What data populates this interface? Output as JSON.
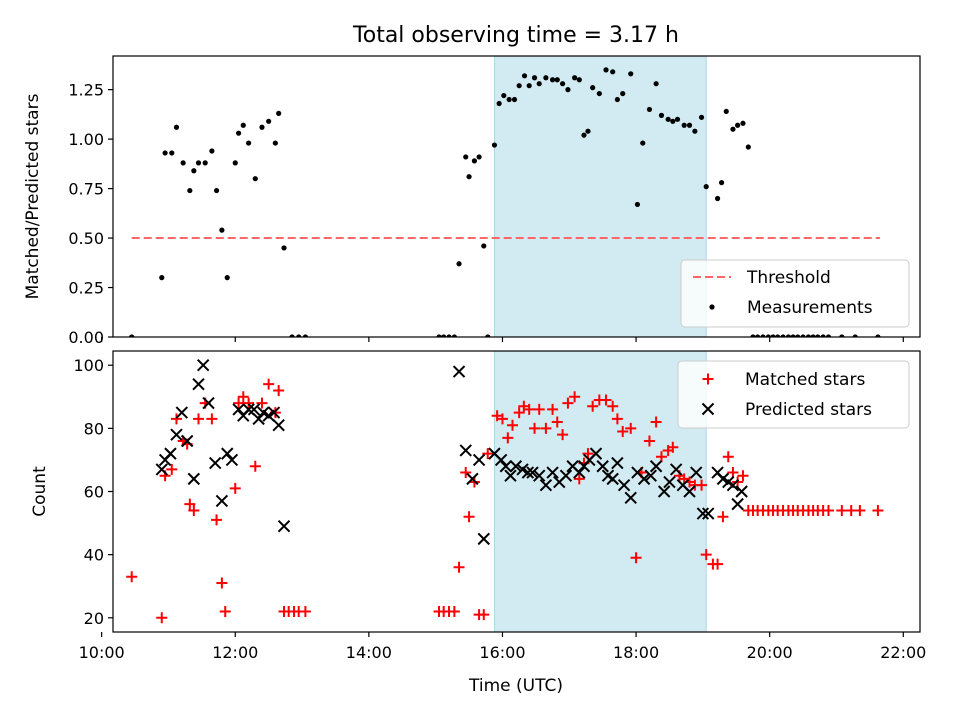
{
  "title": "Total observing time = 3.17 h",
  "xlabel": "Time (UTC)",
  "chart_data": [
    {
      "type": "scatter",
      "panel": "top",
      "title": "Total observing time = 3.17 h",
      "xlabel": "",
      "ylabel": "Matched/Predicted stars",
      "xlim": [
        10.17,
        22.25
      ],
      "ylim": [
        0,
        1.42
      ],
      "yticks": [
        0.0,
        0.25,
        0.5,
        0.75,
        1.0,
        1.25
      ],
      "ytick_labels": [
        "0.00",
        "0.25",
        "0.50",
        "0.75",
        "1.00",
        "1.25"
      ],
      "shaded_region": [
        15.88,
        19.05
      ],
      "shaded_color": "#add8e6",
      "threshold": {
        "name": "Threshold",
        "y": 0.5,
        "x_range": [
          10.45,
          21.65
        ],
        "color": "#ff6666",
        "style": "dashed"
      },
      "series": [
        {
          "name": "Measurements",
          "marker": "dot",
          "color": "#000000",
          "x": [
            10.45,
            10.9,
            10.95,
            11.05,
            11.12,
            11.22,
            11.32,
            11.38,
            11.45,
            11.55,
            11.65,
            11.72,
            11.8,
            11.88,
            12.0,
            12.05,
            12.12,
            12.2,
            12.3,
            12.4,
            12.5,
            12.6,
            12.65,
            12.73,
            12.85,
            12.95,
            13.05,
            15.05,
            15.12,
            15.2,
            15.28,
            15.35,
            15.45,
            15.5,
            15.58,
            15.65,
            15.72,
            15.78,
            15.88,
            15.95,
            16.02,
            16.1,
            16.18,
            16.25,
            16.33,
            16.4,
            16.48,
            16.55,
            16.65,
            16.75,
            16.82,
            16.9,
            16.98,
            17.08,
            17.15,
            17.22,
            17.28,
            17.35,
            17.45,
            17.55,
            17.65,
            17.72,
            17.8,
            17.92,
            18.02,
            18.1,
            18.2,
            18.3,
            18.38,
            18.48,
            18.55,
            18.62,
            18.72,
            18.8,
            18.88,
            18.98,
            19.05,
            19.22,
            19.28,
            19.35,
            19.45,
            19.52,
            19.6,
            19.68,
            19.75,
            19.82,
            19.9,
            19.98,
            20.05,
            20.12,
            20.2,
            20.28,
            20.35,
            20.42,
            20.5,
            20.58,
            20.65,
            20.72,
            20.8,
            20.88,
            21.08,
            21.28,
            21.62
          ],
          "values": [
            0.0,
            0.3,
            0.93,
            0.93,
            1.06,
            0.88,
            0.74,
            0.84,
            0.88,
            0.88,
            0.94,
            0.74,
            0.54,
            0.3,
            0.88,
            1.03,
            1.07,
            0.98,
            0.8,
            1.06,
            1.09,
            0.98,
            1.13,
            0.45,
            0.0,
            0.0,
            0.0,
            0.0,
            0.0,
            0.0,
            0.0,
            0.37,
            0.91,
            0.81,
            0.89,
            0.91,
            0.46,
            0.0,
            0.97,
            1.18,
            1.22,
            1.2,
            1.2,
            1.27,
            1.32,
            1.27,
            1.31,
            1.28,
            1.31,
            1.3,
            1.3,
            1.28,
            1.25,
            1.31,
            1.3,
            1.02,
            1.04,
            1.26,
            1.23,
            1.35,
            1.34,
            1.2,
            1.23,
            1.33,
            0.67,
            0.98,
            1.15,
            1.28,
            1.12,
            1.1,
            1.09,
            1.1,
            1.07,
            1.07,
            1.04,
            1.11,
            0.76,
            0.7,
            0.78,
            1.14,
            1.05,
            1.07,
            1.08,
            0.96,
            0.0,
            0.0,
            0.0,
            0.0,
            0.0,
            0.0,
            0.0,
            0.0,
            0.0,
            0.0,
            0.0,
            0.0,
            0.0,
            0.0,
            0.0,
            0.0,
            0.0,
            0.0,
            0.0
          ]
        }
      ],
      "legend": {
        "location": "lower-right",
        "entries": [
          "Threshold",
          "Measurements"
        ]
      }
    },
    {
      "type": "scatter",
      "panel": "bottom",
      "xlabel": "Time (UTC)",
      "ylabel": "Count",
      "xlim": [
        10.17,
        22.25
      ],
      "ylim": [
        15.5,
        104.5
      ],
      "yticks": [
        20,
        40,
        60,
        80,
        100
      ],
      "ytick_labels": [
        "20",
        "40",
        "60",
        "80",
        "100"
      ],
      "xticks": [
        10,
        12,
        14,
        16,
        18,
        20,
        22
      ],
      "xtick_labels": [
        "10:00",
        "12:00",
        "14:00",
        "16:00",
        "18:00",
        "20:00",
        "22:00"
      ],
      "shaded_region": [
        15.88,
        19.05
      ],
      "shaded_color": "#add8e6",
      "series": [
        {
          "name": "Matched stars",
          "marker": "plus",
          "color": "#ff0000",
          "x": [
            10.45,
            10.9,
            10.95,
            11.05,
            11.12,
            11.22,
            11.28,
            11.32,
            11.38,
            11.45,
            11.55,
            11.65,
            11.72,
            11.8,
            11.85,
            12.0,
            12.05,
            12.12,
            12.2,
            12.3,
            12.4,
            12.5,
            12.6,
            12.65,
            12.73,
            12.8,
            12.88,
            12.95,
            13.05,
            15.05,
            15.12,
            15.2,
            15.28,
            15.35,
            15.45,
            15.5,
            15.58,
            15.65,
            15.72,
            15.78,
            15.92,
            16.0,
            16.08,
            16.15,
            16.25,
            16.32,
            16.4,
            16.48,
            16.55,
            16.65,
            16.75,
            16.82,
            16.9,
            16.98,
            17.08,
            17.15,
            17.22,
            17.28,
            17.35,
            17.45,
            17.55,
            17.65,
            17.72,
            17.8,
            17.92,
            18.0,
            18.08,
            18.2,
            18.3,
            18.38,
            18.48,
            18.55,
            18.65,
            18.72,
            18.8,
            18.88,
            18.98,
            19.05,
            19.15,
            19.22,
            19.3,
            19.38,
            19.45,
            19.52,
            19.6,
            19.68,
            19.75,
            19.82,
            19.9,
            19.98,
            20.05,
            20.12,
            20.2,
            20.28,
            20.35,
            20.42,
            20.5,
            20.58,
            20.65,
            20.72,
            20.8,
            20.88,
            21.08,
            21.22,
            21.35,
            21.62
          ],
          "values": [
            33,
            20,
            65,
            67,
            83,
            76,
            75,
            56,
            54,
            83,
            88,
            83,
            51,
            31,
            22,
            61,
            88,
            90,
            88,
            68,
            88,
            94,
            85,
            92,
            22,
            22,
            22,
            22,
            22,
            22,
            22,
            22,
            22,
            36,
            66,
            52,
            63,
            21,
            21,
            72,
            84,
            83,
            77,
            81,
            85,
            87,
            86,
            80,
            86,
            80,
            86,
            82,
            78,
            88,
            90,
            64,
            69,
            72,
            87,
            89,
            89,
            87,
            83,
            79,
            80,
            39,
            66,
            76,
            82,
            71,
            73,
            74,
            65,
            64,
            63,
            62,
            62,
            40,
            37,
            37,
            52,
            71,
            66,
            63,
            65,
            54,
            54,
            54,
            54,
            54,
            54,
            54,
            54,
            54,
            54,
            54,
            54,
            54,
            54,
            54,
            54,
            54,
            54,
            54,
            54,
            54
          ]
        },
        {
          "name": "Predicted stars",
          "marker": "x",
          "color": "#000000",
          "x": [
            10.9,
            10.95,
            11.03,
            11.12,
            11.2,
            11.28,
            11.38,
            11.45,
            11.52,
            11.6,
            11.7,
            11.8,
            11.88,
            11.95,
            12.05,
            12.12,
            12.2,
            12.28,
            12.35,
            12.42,
            12.5,
            12.58,
            12.65,
            12.73,
            15.35,
            15.45,
            15.55,
            15.65,
            15.72,
            15.88,
            15.98,
            16.05,
            16.12,
            16.2,
            16.3,
            16.38,
            16.45,
            16.55,
            16.65,
            16.75,
            16.85,
            16.95,
            17.05,
            17.15,
            17.22,
            17.3,
            17.4,
            17.5,
            17.58,
            17.65,
            17.72,
            17.82,
            17.92,
            18.02,
            18.12,
            18.22,
            18.3,
            18.42,
            18.5,
            18.6,
            18.7,
            18.8,
            18.9,
            19.0,
            19.08,
            19.22,
            19.3,
            19.38,
            19.45,
            19.52,
            19.58
          ],
          "values": [
            67,
            70,
            72,
            78,
            85,
            76,
            64,
            94,
            100,
            88,
            69,
            57,
            72,
            70,
            86,
            84,
            86,
            86,
            83,
            85,
            84,
            85,
            81,
            49,
            98,
            73,
            64,
            70,
            45,
            72,
            70,
            68,
            65,
            68,
            67,
            66,
            66,
            65,
            62,
            66,
            63,
            65,
            68,
            66,
            68,
            70,
            72,
            68,
            65,
            64,
            69,
            62,
            58,
            66,
            64,
            65,
            68,
            60,
            63,
            67,
            62,
            60,
            66,
            53,
            53,
            66,
            64,
            63,
            62,
            56,
            60
          ],
          "_note": ""
        }
      ],
      "legend": {
        "location": "top-right",
        "entries": [
          "Matched stars",
          "Predicted stars"
        ]
      }
    }
  ],
  "colors": {
    "threshold": "#ff6666",
    "matched": "#ff0000",
    "predicted": "#000000",
    "shade": "#add8e6"
  }
}
